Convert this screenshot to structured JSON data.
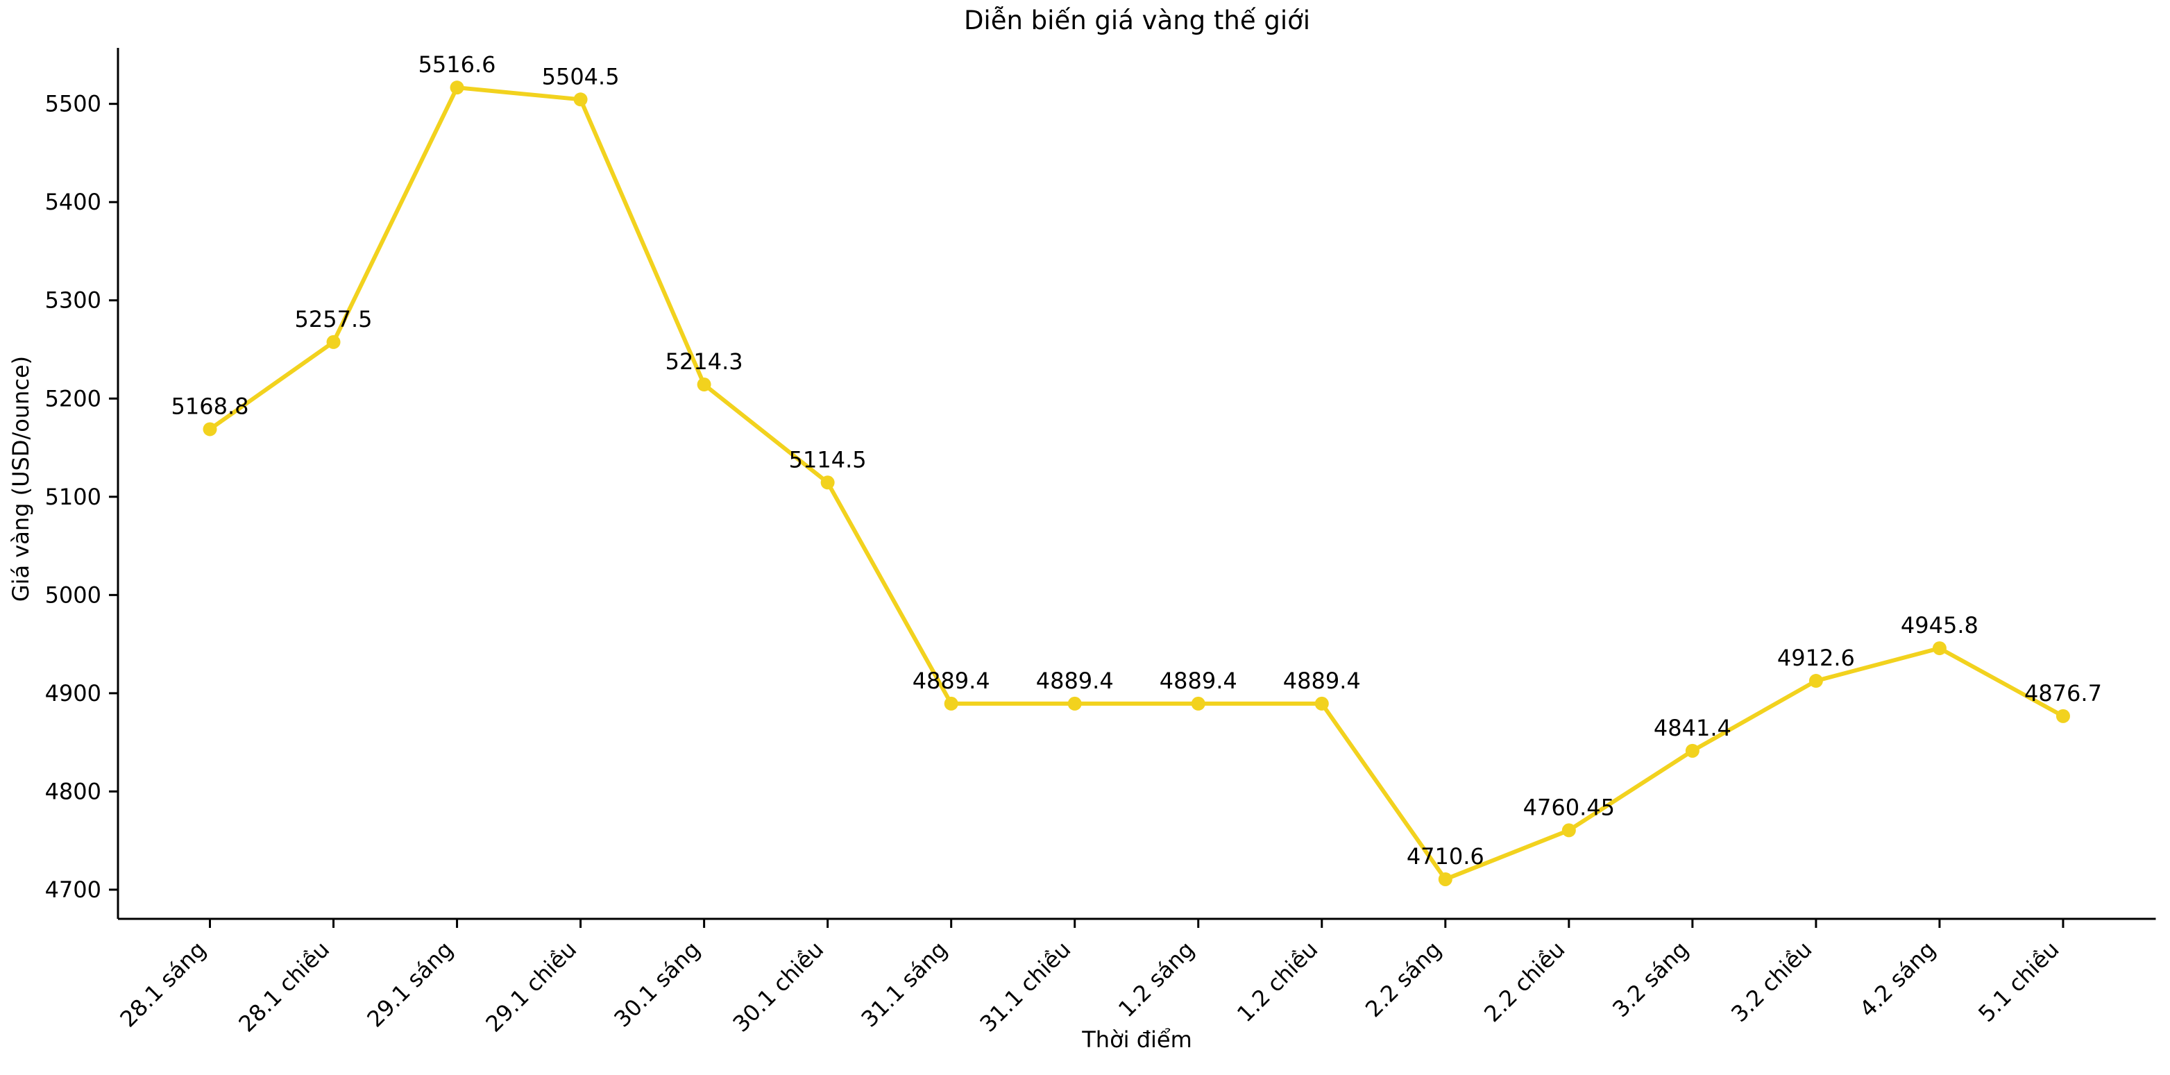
{
  "chart_data": {
    "type": "line",
    "title": "Diễn biến giá vàng thế giới",
    "xlabel": "Thời điểm",
    "ylabel": "Giá vàng (USD/ounce)",
    "categories": [
      "28.1 sáng",
      "28.1 chiều",
      "29.1 sáng",
      "29.1 chiều",
      "30.1 sáng",
      "30.1 chiều",
      "31.1 sáng",
      "31.1 chiều",
      "1.2 sáng",
      "1.2 chiều",
      "2.2 sáng",
      "2.2 chiều",
      "3.2 sáng",
      "3.2 chiều",
      "4.2 sáng",
      "5.1 chiều"
    ],
    "values": [
      5168.8,
      5257.5,
      5516.6,
      5504.5,
      5214.3,
      5114.5,
      4889.4,
      4889.4,
      4889.4,
      4889.4,
      4710.6,
      4760.45,
      4841.4,
      4912.6,
      4945.8,
      4876.7
    ],
    "point_labels": [
      "5168.8",
      "5257.5",
      "5516.6",
      "5504.5",
      "5214.3",
      "5114.5",
      "4889.4",
      "4889.4",
      "4889.4",
      "4889.4",
      "4710.6",
      "4760.45",
      "4841.4",
      "4912.6",
      "4945.8",
      "4876.7"
    ],
    "yticks": [
      4700,
      4800,
      4900,
      5000,
      5100,
      5200,
      5300,
      5400,
      5500
    ],
    "ylim": [
      4670.3,
      5557.0
    ],
    "line_color": "#F2D21E",
    "marker": "circle",
    "grid": false,
    "legend": null,
    "axis_color": "#000000"
  }
}
